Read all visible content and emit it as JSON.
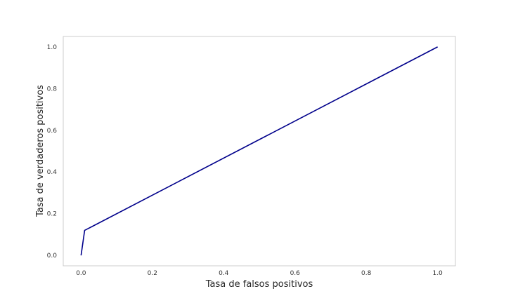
{
  "chart_data": {
    "type": "line",
    "title": "",
    "xlabel": "Tasa de falsos positivos",
    "ylabel": "Tasa de verdaderos positivos",
    "xlim": [
      -0.05,
      1.05
    ],
    "ylim": [
      -0.05,
      1.05
    ],
    "x_ticks": [
      0.0,
      0.2,
      0.4,
      0.6,
      0.8,
      1.0
    ],
    "y_ticks": [
      0.0,
      0.2,
      0.4,
      0.6,
      0.8,
      1.0
    ],
    "x_tick_labels": [
      "0.0",
      "0.2",
      "0.4",
      "0.6",
      "0.8",
      "1.0"
    ],
    "y_tick_labels": [
      "0.0",
      "0.2",
      "0.4",
      "0.6",
      "0.8",
      "1.0"
    ],
    "grid": false,
    "legend": "none",
    "series": [
      {
        "color": "#00008b",
        "x": [
          0.0,
          0.01,
          1.0
        ],
        "y": [
          0.0,
          0.12,
          1.0
        ]
      }
    ],
    "frame_color": "#cccccc"
  }
}
